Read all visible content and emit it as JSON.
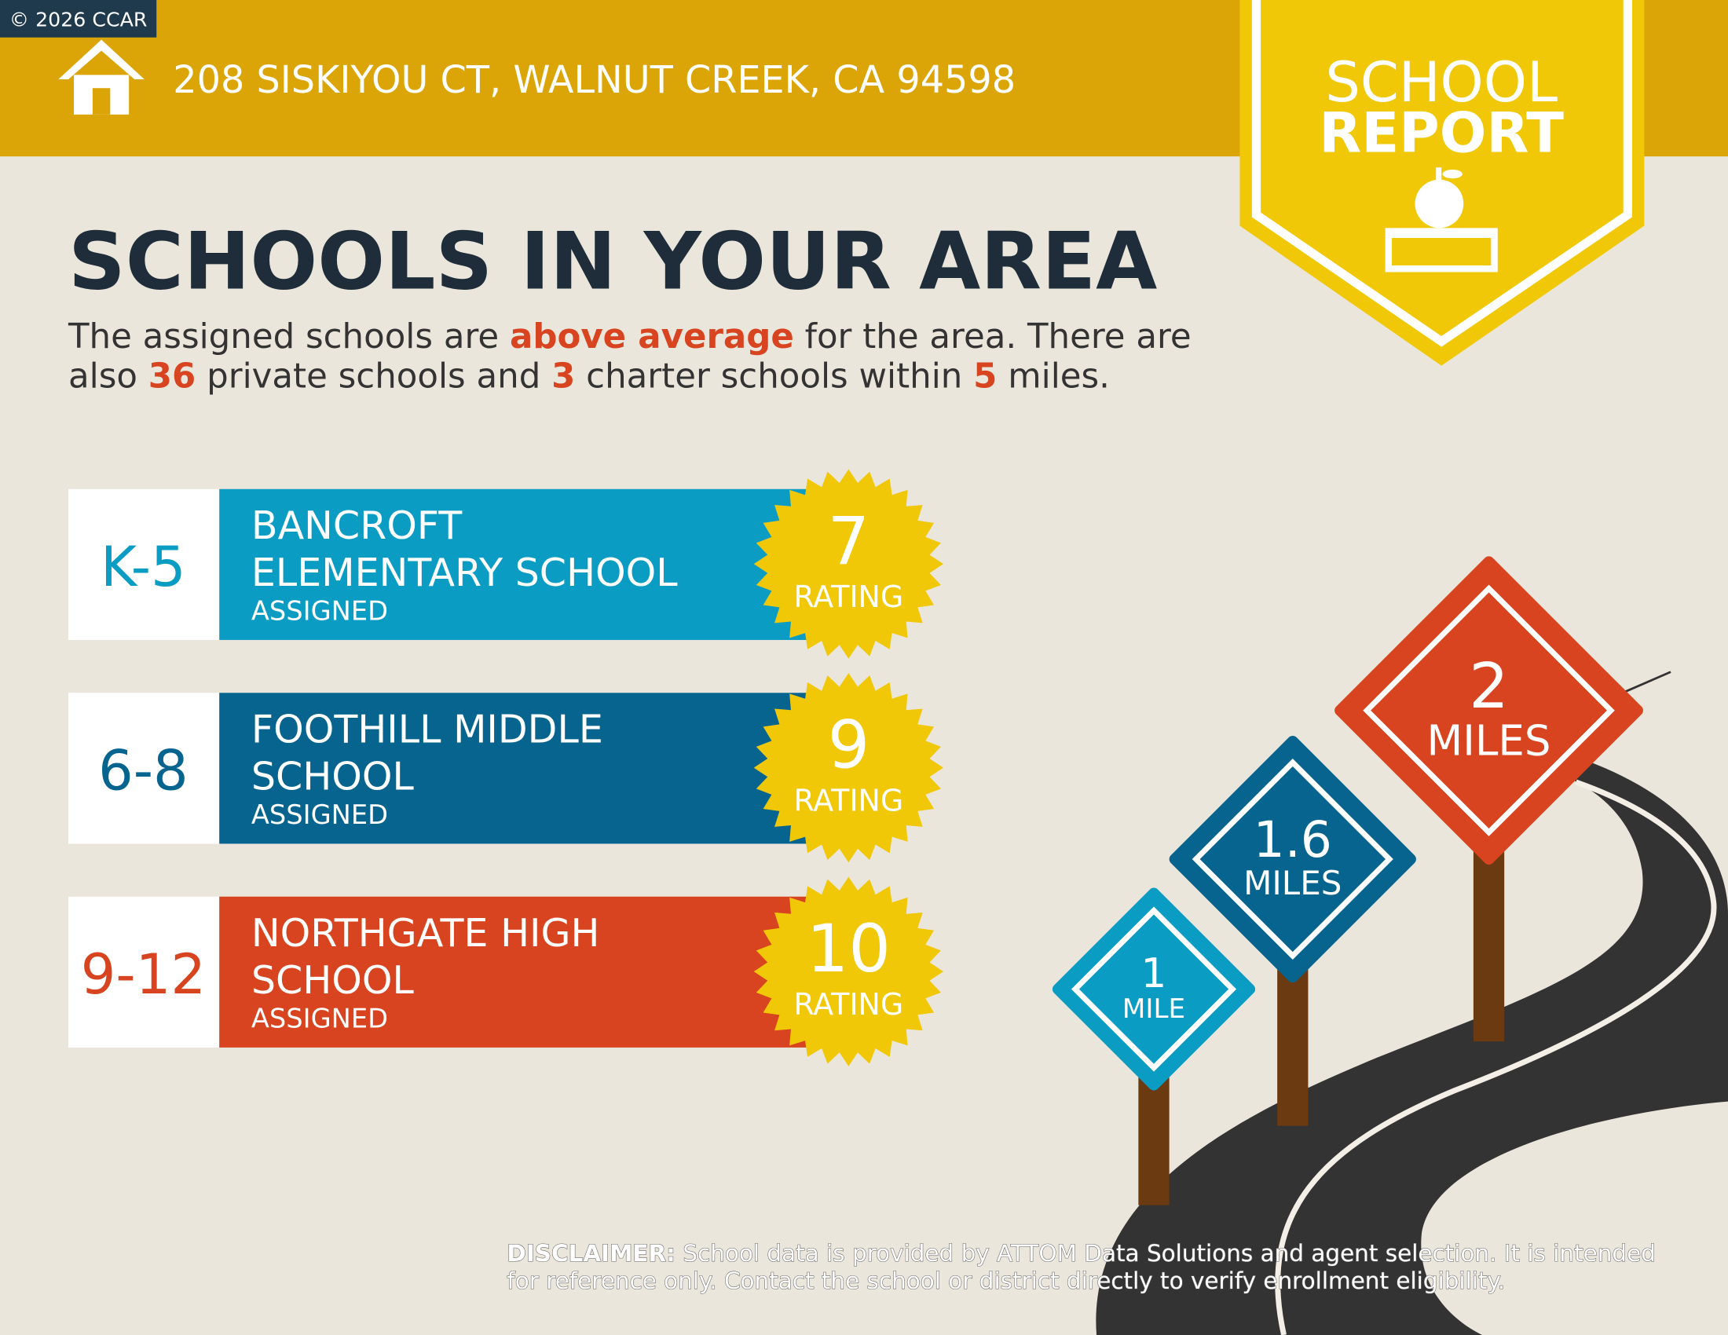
{
  "badge": "© 2026 CCAR",
  "header": {
    "address": "208 SISKIYOU CT, WALNUT CREEK, CA 94598",
    "report_label": [
      "SCHOOL",
      "REPORT"
    ]
  },
  "title": "SCHOOLS IN YOUR AREA",
  "summary": {
    "lines": [
      [
        {
          "text": "The assigned schools are "
        },
        {
          "text": "above average",
          "highlight": true
        },
        {
          "text": " for the area. There are"
        }
      ],
      [
        {
          "text": "also "
        },
        {
          "text": "36",
          "highlight": true
        },
        {
          "text": " private schools and "
        },
        {
          "text": "3",
          "highlight": true
        },
        {
          "text": " charter schools within "
        },
        {
          "text": "5",
          "highlight": true
        },
        {
          "text": " miles."
        }
      ]
    ]
  },
  "schools": [
    {
      "grades": "K-5",
      "name_lines": [
        "BANCROFT",
        "ELEMENTARY SCHOOL"
      ],
      "status": "ASSIGNED",
      "rating": 7,
      "rating_label": "RATING",
      "color": "#0b9cc4"
    },
    {
      "grades": "6-8",
      "name_lines": [
        "FOOTHILL MIDDLE",
        "SCHOOL"
      ],
      "status": "ASSIGNED",
      "rating": 9,
      "rating_label": "RATING",
      "color": "#07648e"
    },
    {
      "grades": "9-12",
      "name_lines": [
        "NORTHGATE HIGH",
        "SCHOOL"
      ],
      "status": "ASSIGNED",
      "rating": 10,
      "rating_label": "RATING",
      "color": "#d7441f"
    }
  ],
  "signs": [
    {
      "distance": "1",
      "unit": "MILE",
      "color": "#0b9cc4"
    },
    {
      "distance": "1.6",
      "unit": "MILES",
      "color": "#07648e"
    },
    {
      "distance": "2",
      "unit": "MILES",
      "color": "#d7441f"
    }
  ],
  "disclaimer": {
    "label": "DISCLAIMER:",
    "lines": [
      " School data is provided by ATTOM Data Solutions and agent selection. It is intended",
      "for reference only. Contact the school or district directly to verify enrollment eligibility."
    ]
  }
}
